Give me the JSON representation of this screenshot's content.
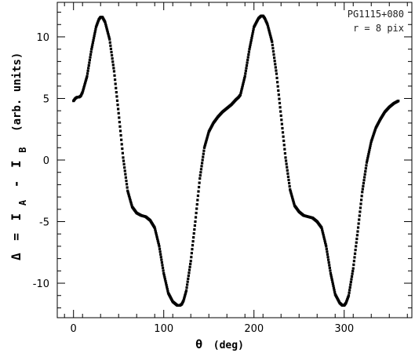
{
  "chart_data": {
    "type": "scatter",
    "xlabel": {
      "symbol": "θ",
      "unit": "(deg)"
    },
    "ylabel": {
      "delta": "Δ",
      "eq": "=",
      "I1": "I",
      "sub1": "A",
      "minus": "-",
      "I2": "I",
      "sub2": "B",
      "unit": "(arb. units)"
    },
    "annotations": [
      "PG1115+080",
      "r = 8 pix"
    ],
    "xlim": [
      -18,
      375
    ],
    "ylim": [
      -12.8,
      12.8
    ],
    "xticks": [
      0,
      100,
      200,
      300
    ],
    "yticks": [
      -10,
      -5,
      0,
      5,
      10
    ],
    "grid": false,
    "legend": "none",
    "marker_color": "#000000",
    "series": [
      {
        "x": [
          0,
          2,
          4,
          6,
          8,
          10,
          15,
          20,
          25,
          28,
          30,
          32,
          35,
          40,
          45,
          50,
          55,
          60,
          65,
          70,
          75,
          80,
          85,
          90,
          95,
          100,
          105,
          110,
          115,
          118,
          120,
          122,
          125,
          130,
          135,
          140,
          145,
          150,
          155,
          160,
          165,
          170,
          175,
          180,
          183,
          185,
          190,
          195,
          200,
          205,
          208,
          210,
          212,
          215,
          220,
          225,
          230,
          235,
          240,
          245,
          250,
          255,
          260,
          265,
          270,
          275,
          280,
          285,
          290,
          295,
          298,
          300,
          302,
          305,
          310,
          315,
          320,
          325,
          330,
          335,
          340,
          345,
          350,
          355,
          360
        ],
        "y": [
          4.8,
          5.0,
          5.1,
          5.1,
          5.2,
          5.5,
          6.8,
          9.0,
          10.8,
          11.4,
          11.6,
          11.6,
          11.2,
          9.8,
          7.2,
          3.8,
          0.2,
          -2.5,
          -3.8,
          -4.3,
          -4.5,
          -4.6,
          -4.9,
          -5.5,
          -7.0,
          -9.2,
          -10.8,
          -11.5,
          -11.8,
          -11.8,
          -11.7,
          -11.4,
          -10.6,
          -8.2,
          -5.0,
          -1.5,
          1.0,
          2.3,
          3.0,
          3.5,
          3.9,
          4.2,
          4.5,
          4.9,
          5.1,
          5.3,
          6.8,
          9.0,
          10.8,
          11.5,
          11.7,
          11.7,
          11.5,
          11.0,
          9.6,
          7.0,
          3.6,
          0.2,
          -2.4,
          -3.7,
          -4.2,
          -4.5,
          -4.6,
          -4.7,
          -5.0,
          -5.5,
          -7.0,
          -9.2,
          -10.9,
          -11.6,
          -11.8,
          -11.8,
          -11.6,
          -11.0,
          -8.8,
          -5.8,
          -2.6,
          -0.2,
          1.5,
          2.6,
          3.3,
          3.9,
          4.3,
          4.6,
          4.8
        ]
      }
    ]
  }
}
